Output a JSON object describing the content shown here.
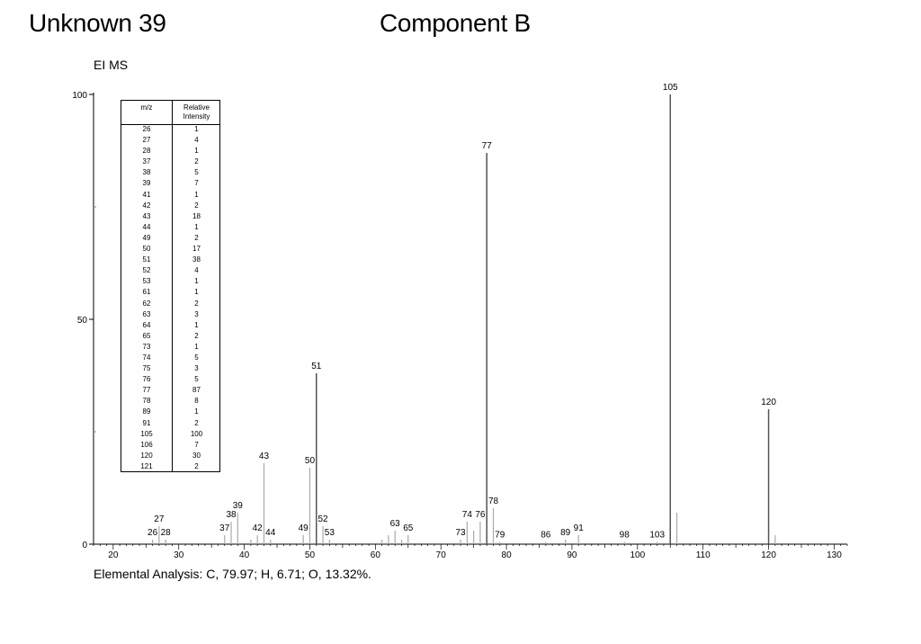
{
  "header": {
    "title": "Unknown 39",
    "component": "Component B",
    "method": "EI MS"
  },
  "footer": {
    "elemental_analysis": "Elemental Analysis: C, 79.97; H, 6.71; O, 13.32%."
  },
  "peak_table": {
    "col_mz": "m/z",
    "col_rel": "Relative Intensity",
    "rows": [
      {
        "mz": "26",
        "rel": "1"
      },
      {
        "mz": "27",
        "rel": "4"
      },
      {
        "mz": "28",
        "rel": "1"
      },
      {
        "mz": "37",
        "rel": "2"
      },
      {
        "mz": "38",
        "rel": "5"
      },
      {
        "mz": "39",
        "rel": "7"
      },
      {
        "mz": "41",
        "rel": "1"
      },
      {
        "mz": "42",
        "rel": "2"
      },
      {
        "mz": "43",
        "rel": "18"
      },
      {
        "mz": "44",
        "rel": "1"
      },
      {
        "mz": "49",
        "rel": "2"
      },
      {
        "mz": "50",
        "rel": "17"
      },
      {
        "mz": "51",
        "rel": "38"
      },
      {
        "mz": "52",
        "rel": "4"
      },
      {
        "mz": "53",
        "rel": "1"
      },
      {
        "mz": "61",
        "rel": "1"
      },
      {
        "mz": "62",
        "rel": "2"
      },
      {
        "mz": "63",
        "rel": "3"
      },
      {
        "mz": "64",
        "rel": "1"
      },
      {
        "mz": "65",
        "rel": "2"
      },
      {
        "mz": "73",
        "rel": "1"
      },
      {
        "mz": "74",
        "rel": "5"
      },
      {
        "mz": "75",
        "rel": "3"
      },
      {
        "mz": "76",
        "rel": "5"
      },
      {
        "mz": "77",
        "rel": "87"
      },
      {
        "mz": "78",
        "rel": "8"
      },
      {
        "mz": "89",
        "rel": "1"
      },
      {
        "mz": "91",
        "rel": "2"
      },
      {
        "mz": "105",
        "rel": "100"
      },
      {
        "mz": "106",
        "rel": "7"
      },
      {
        "mz": "120",
        "rel": "30"
      },
      {
        "mz": "121",
        "rel": "2"
      }
    ]
  },
  "chart_data": {
    "type": "bar",
    "xlim": [
      17,
      132
    ],
    "ylim": [
      0,
      100
    ],
    "x_ticks": [
      20,
      30,
      40,
      50,
      60,
      70,
      80,
      90,
      100,
      110,
      120,
      130
    ],
    "y_ticks": [
      0,
      50,
      100
    ],
    "peaks": [
      {
        "mz": 26,
        "rel": 1,
        "label": "26"
      },
      {
        "mz": 27,
        "rel": 4,
        "label": "27"
      },
      {
        "mz": 28,
        "rel": 1,
        "label": "28"
      },
      {
        "mz": 37,
        "rel": 2,
        "label": "37"
      },
      {
        "mz": 38,
        "rel": 5,
        "label": "38"
      },
      {
        "mz": 39,
        "rel": 7,
        "label": "39"
      },
      {
        "mz": 41,
        "rel": 1,
        "label": ""
      },
      {
        "mz": 42,
        "rel": 2,
        "label": "42"
      },
      {
        "mz": 43,
        "rel": 18,
        "label": "43"
      },
      {
        "mz": 44,
        "rel": 1,
        "label": "44"
      },
      {
        "mz": 49,
        "rel": 2,
        "label": "49"
      },
      {
        "mz": 50,
        "rel": 17,
        "label": "50"
      },
      {
        "mz": 51,
        "rel": 38,
        "label": "51"
      },
      {
        "mz": 52,
        "rel": 4,
        "label": "52"
      },
      {
        "mz": 53,
        "rel": 1,
        "label": "53"
      },
      {
        "mz": 61,
        "rel": 1,
        "label": ""
      },
      {
        "mz": 62,
        "rel": 2,
        "label": ""
      },
      {
        "mz": 63,
        "rel": 3,
        "label": "63"
      },
      {
        "mz": 64,
        "rel": 1,
        "label": ""
      },
      {
        "mz": 65,
        "rel": 2,
        "label": "65"
      },
      {
        "mz": 73,
        "rel": 1,
        "label": "73"
      },
      {
        "mz": 74,
        "rel": 5,
        "label": "74"
      },
      {
        "mz": 75,
        "rel": 3,
        "label": ""
      },
      {
        "mz": 76,
        "rel": 5,
        "label": "76"
      },
      {
        "mz": 77,
        "rel": 87,
        "label": "77"
      },
      {
        "mz": 78,
        "rel": 8,
        "label": "78"
      },
      {
        "mz": 79,
        "rel": 0.5,
        "label": "79"
      },
      {
        "mz": 86,
        "rel": 0.5,
        "label": "86"
      },
      {
        "mz": 89,
        "rel": 1,
        "label": "89"
      },
      {
        "mz": 91,
        "rel": 2,
        "label": "91"
      },
      {
        "mz": 98,
        "rel": 0.5,
        "label": "98"
      },
      {
        "mz": 103,
        "rel": 0.5,
        "label": "103"
      },
      {
        "mz": 105,
        "rel": 100,
        "label": "105"
      },
      {
        "mz": 106,
        "rel": 7,
        "label": ""
      },
      {
        "mz": 120,
        "rel": 30,
        "label": "120"
      },
      {
        "mz": 121,
        "rel": 2,
        "label": ""
      }
    ],
    "colors": {
      "major_peak": "#555555",
      "minor_peak": "#aaaaaa",
      "axis": "#000000"
    }
  }
}
